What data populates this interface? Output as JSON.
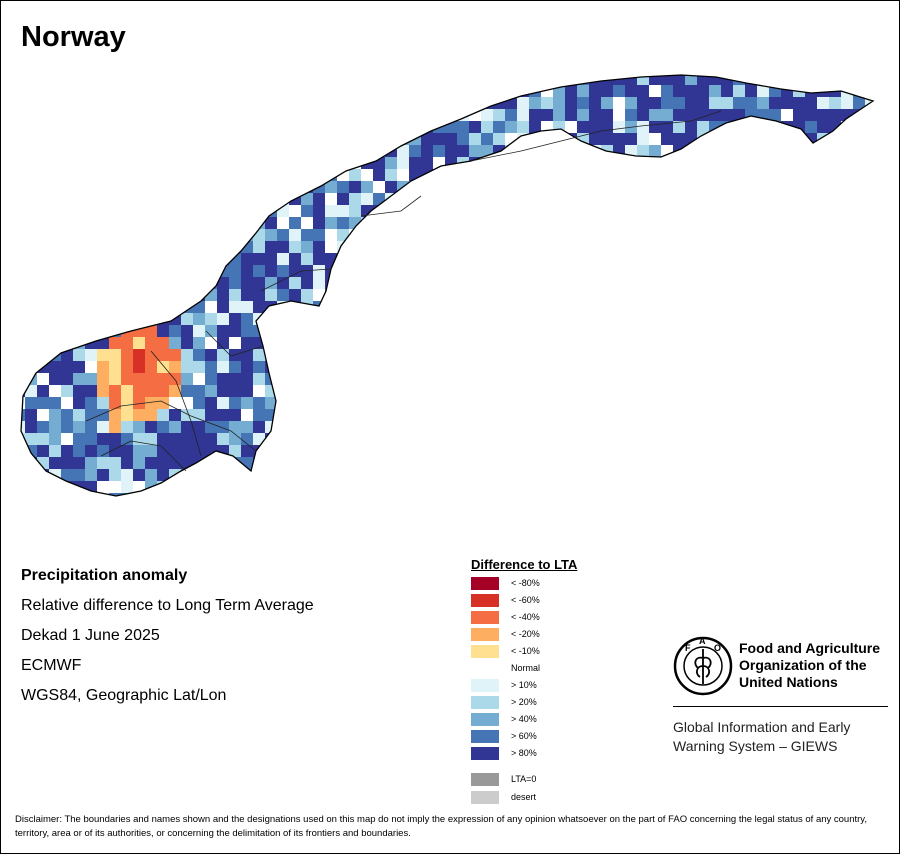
{
  "map": {
    "title": "Norway",
    "info": {
      "heading": "Precipitation anomaly",
      "line1": "Relative difference to Long Term Average",
      "line2": "Dekad 1 June 2025",
      "line3": "ECMWF",
      "line4": "WGS84, Geographic Lat/Lon"
    },
    "legend": {
      "title": "Difference to LTA",
      "items": [
        {
          "label": "< -80%",
          "color": "#a50026"
        },
        {
          "label": "< -60%",
          "color": "#d73027"
        },
        {
          "label": "< -40%",
          "color": "#f46d43"
        },
        {
          "label": "< -20%",
          "color": "#fdae61"
        },
        {
          "label": "< -10%",
          "color": "#fee090"
        },
        {
          "label": "Normal",
          "color": "#ffffff"
        },
        {
          "label": "> 10%",
          "color": "#e0f3f8"
        },
        {
          "label": "> 20%",
          "color": "#abd9e9"
        },
        {
          "label": "> 40%",
          "color": "#74add1"
        },
        {
          "label": "> 60%",
          "color": "#4575b4"
        },
        {
          "label": "> 80%",
          "color": "#313695"
        }
      ],
      "extra": [
        {
          "label": "LTA=0",
          "color": "#999999"
        },
        {
          "label": "desert",
          "color": "#cccccc"
        }
      ]
    },
    "org": {
      "name_line1": "Food and Agriculture",
      "name_line2": "Organization of the",
      "name_line3": "United Nations",
      "system_line1": "Global Information and Early",
      "system_line2": "Warning System – GIEWS",
      "logo_letters": "FAO"
    },
    "disclaimer": "Disclaimer: The boundaries and names shown and the designations used on this map do not imply the expression of any opinion whatsoever on the part of FAO concerning the legal status of any country, territory, area or of its authorities, or concerning the delimitation of its frontiers and boundaries."
  }
}
